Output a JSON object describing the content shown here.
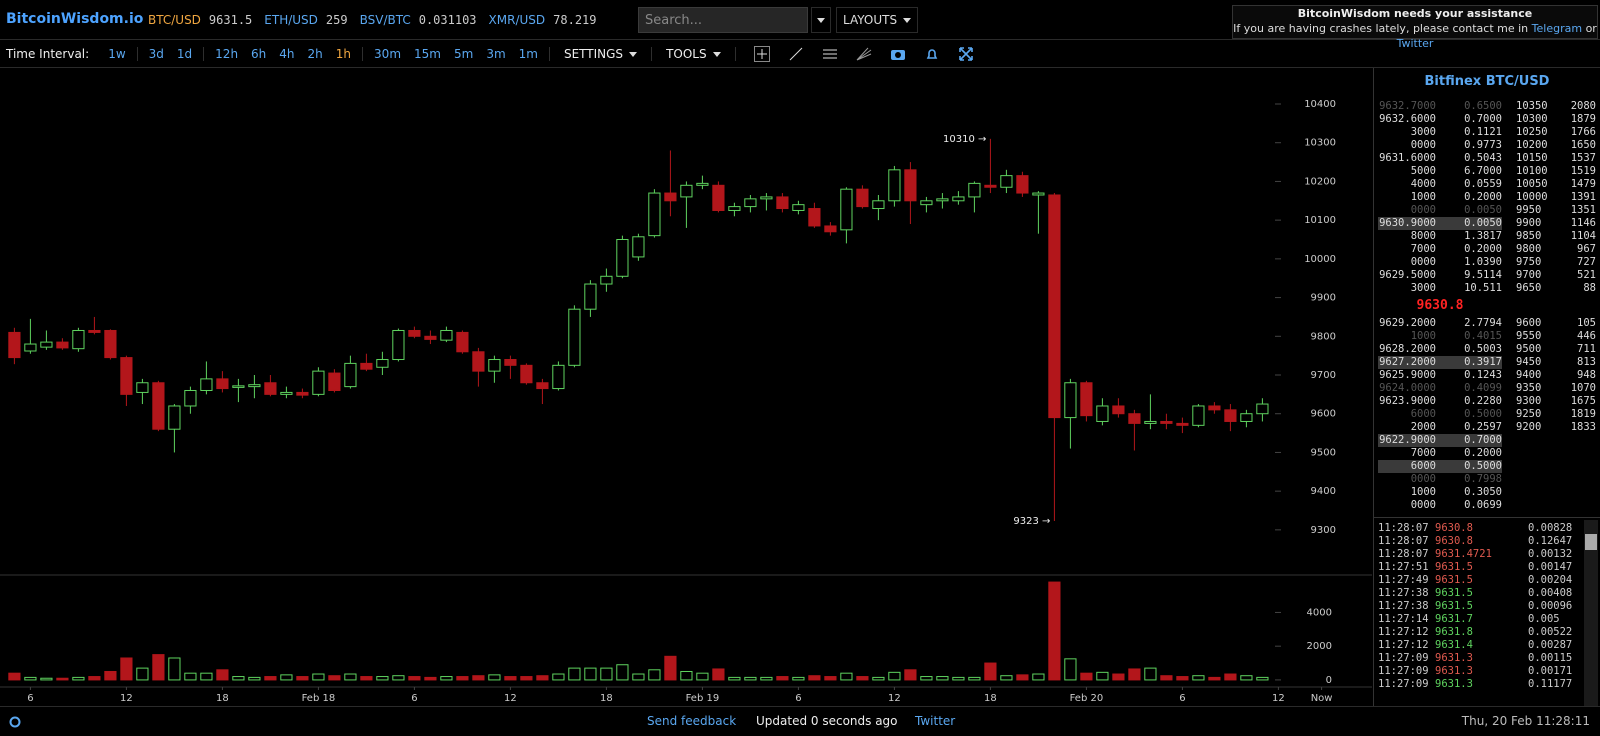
{
  "header": {
    "brand": "BitcoinWisdom.io",
    "tickers": [
      {
        "pair": "BTC/USD",
        "price": "9631.5"
      },
      {
        "pair": "ETH/USD",
        "price": "259"
      },
      {
        "pair": "BSV/BTC",
        "price": "0.031103"
      },
      {
        "pair": "XMR/USD",
        "price": "78.219"
      }
    ],
    "active_pair": "BTC/USD",
    "search_placeholder": "Search...",
    "layouts": "LAYOUTS",
    "notice": {
      "title": "BitcoinWisdom needs your assistance",
      "text": "If you are having crashes lately, please contact me in",
      "link1": "Telegram",
      "joiner": "or",
      "link2": "Twitter"
    }
  },
  "toolbar": {
    "label": "Time Interval:",
    "intervals": [
      [
        "1w"
      ],
      [
        "3d",
        "1d"
      ],
      [
        "12h",
        "6h",
        "4h",
        "2h",
        "1h"
      ],
      [
        "30m",
        "15m",
        "5m",
        "3m",
        "1m"
      ]
    ],
    "active": "1h",
    "settings": "SETTINGS",
    "tools": "TOOLS"
  },
  "chart_data": {
    "type": "candlestick",
    "up_color": "#5fd35f",
    "down_color": "#b3161b",
    "x": [
      0,
      1,
      2,
      3,
      4,
      5,
      6,
      7,
      8,
      9,
      10,
      11,
      12,
      13,
      14,
      15,
      16,
      17,
      18,
      19,
      20,
      21,
      22,
      23,
      24,
      25,
      26,
      27,
      28,
      29,
      30,
      31,
      32,
      33,
      34,
      35,
      36,
      37,
      38,
      39,
      40,
      41,
      42,
      43,
      44,
      45,
      46,
      47,
      48,
      49,
      50,
      51,
      52,
      53,
      54,
      55,
      56,
      57,
      58,
      59,
      60,
      61,
      62,
      63,
      64,
      65,
      66,
      67,
      68,
      69,
      70,
      71,
      72,
      73,
      74,
      75,
      76,
      77,
      78
    ],
    "open": [
      9810,
      9762,
      9772,
      9785,
      9768,
      9815,
      9815,
      9745,
      9655,
      9680,
      9560,
      9620,
      9660,
      9690,
      9668,
      9670,
      9680,
      9650,
      9655,
      9650,
      9705,
      9670,
      9730,
      9720,
      9740,
      9815,
      9800,
      9790,
      9810,
      9760,
      9710,
      9740,
      9725,
      9680,
      9665,
      9725,
      9870,
      9935,
      9955,
      10005,
      10060,
      10170,
      10160,
      10190,
      10190,
      10125,
      10135,
      10155,
      10160,
      10125,
      10130,
      10085,
      10075,
      10180,
      10130,
      10150,
      10230,
      10140,
      10150,
      10150,
      10160,
      10190,
      10185,
      10215,
      10165,
      10165,
      9590,
      9680,
      9580,
      9620,
      9600,
      9575,
      9580,
      9575,
      9570,
      9620,
      9610,
      9580,
      9600
    ],
    "high": [
      9822,
      9845,
      9815,
      9795,
      9822,
      9850,
      9818,
      9750,
      9690,
      9685,
      9625,
      9670,
      9735,
      9710,
      9690,
      9700,
      9700,
      9670,
      9665,
      9720,
      9715,
      9750,
      9755,
      9760,
      9820,
      9825,
      9815,
      9825,
      9815,
      9770,
      9750,
      9750,
      9730,
      9690,
      9735,
      9880,
      9945,
      9975,
      10060,
      10065,
      10180,
      10280,
      10200,
      10215,
      10200,
      10145,
      10165,
      10170,
      10170,
      10150,
      10145,
      10095,
      10185,
      10190,
      10165,
      10240,
      10250,
      10160,
      10170,
      10175,
      10200,
      10310,
      10230,
      10225,
      10175,
      10170,
      9690,
      9685,
      9640,
      9640,
      9610,
      9650,
      9600,
      9590,
      9625,
      9630,
      9625,
      9610,
      9640
    ],
    "low": [
      9728,
      9755,
      9765,
      9765,
      9760,
      9805,
      9740,
      9620,
      9625,
      9555,
      9500,
      9600,
      9650,
      9655,
      9630,
      9640,
      9645,
      9640,
      9640,
      9645,
      9655,
      9665,
      9710,
      9700,
      9735,
      9795,
      9780,
      9785,
      9755,
      9670,
      9680,
      9690,
      9675,
      9625,
      9660,
      9720,
      9850,
      9915,
      9950,
      9995,
      10055,
      10110,
      10080,
      10180,
      10120,
      10110,
      10120,
      10125,
      10120,
      10115,
      10080,
      10060,
      10040,
      10130,
      10100,
      10135,
      10090,
      10120,
      10130,
      10140,
      10120,
      10170,
      10170,
      10160,
      10065,
      9323,
      9510,
      9580,
      9570,
      9590,
      9505,
      9560,
      9560,
      9550,
      9565,
      9600,
      9555,
      9565,
      9580
    ],
    "close": [
      9745,
      9780,
      9785,
      9770,
      9815,
      9810,
      9745,
      9650,
      9680,
      9560,
      9620,
      9660,
      9690,
      9665,
      9672,
      9675,
      9650,
      9655,
      9648,
      9710,
      9660,
      9730,
      9715,
      9740,
      9815,
      9800,
      9792,
      9815,
      9760,
      9710,
      9740,
      9725,
      9680,
      9665,
      9725,
      9870,
      9935,
      9955,
      10050,
      10057,
      10170,
      10150,
      10190,
      10195,
      10125,
      10135,
      10155,
      10160,
      10130,
      10140,
      10085,
      10070,
      10180,
      10135,
      10150,
      10230,
      10150,
      10150,
      10155,
      10160,
      10195,
      10185,
      10215,
      10170,
      10170,
      9590,
      9680,
      9595,
      9620,
      9600,
      9575,
      9580,
      9575,
      9570,
      9620,
      9610,
      9580,
      9600,
      9625
    ],
    "volume": [
      400,
      150,
      100,
      100,
      150,
      200,
      500,
      1300,
      700,
      1500,
      1300,
      400,
      400,
      600,
      200,
      150,
      200,
      300,
      200,
      350,
      250,
      350,
      200,
      200,
      250,
      200,
      150,
      200,
      200,
      250,
      300,
      200,
      200,
      250,
      350,
      700,
      700,
      700,
      900,
      350,
      600,
      1400,
      500,
      400,
      650,
      150,
      150,
      150,
      200,
      150,
      250,
      200,
      400,
      200,
      150,
      450,
      600,
      200,
      200,
      150,
      150,
      1000,
      250,
      300,
      350,
      5800,
      1250,
      400,
      450,
      350,
      650,
      700,
      250,
      200,
      250,
      150,
      350,
      250,
      150
    ],
    "xlim": [
      -0.9,
      84.85
    ],
    "xticks": [
      {
        "value": 1,
        "label": "6"
      },
      {
        "value": 7,
        "label": "12"
      },
      {
        "value": 13,
        "label": "18"
      },
      {
        "value": 19,
        "label": "Feb 18"
      },
      {
        "value": 25,
        "label": "6"
      },
      {
        "value": 31,
        "label": "12"
      },
      {
        "value": 37,
        "label": "18"
      },
      {
        "value": 43,
        "label": "Feb 19"
      },
      {
        "value": 49,
        "label": "6"
      },
      {
        "value": 55,
        "label": "12"
      },
      {
        "value": 61,
        "label": "18"
      },
      {
        "value": 67,
        "label": "Feb 20"
      },
      {
        "value": 73,
        "label": "6"
      },
      {
        "value": 79,
        "label": "12"
      },
      {
        "value": 81.7,
        "label": "Now"
      }
    ],
    "ylim": [
      9186,
      10493
    ],
    "yticks": [
      9300,
      9400,
      9500,
      9600,
      9700,
      9800,
      9900,
      10000,
      10100,
      10200,
      10300,
      10400
    ],
    "volume_ylim": [
      -360,
      6160
    ],
    "volume_yticks": [
      0,
      2000,
      4000
    ],
    "annotations": [
      {
        "value": 10310,
        "label": "10310 →"
      },
      {
        "value": 9323,
        "label": "9323 →"
      }
    ]
  },
  "sidebar": {
    "title": "Bitfinex BTC/USD",
    "asks": [
      {
        "price": "9632.7000",
        "amount": "0.6500",
        "state": "dim"
      },
      {
        "price": "9632.6000",
        "amount": "0.7000"
      },
      {
        "price": "3000",
        "amount": "0.1121"
      },
      {
        "price": "0000",
        "amount": "0.9773"
      },
      {
        "price": "9631.6000",
        "amount": "0.5043"
      },
      {
        "price": "5000",
        "amount": "6.7000"
      },
      {
        "price": "4000",
        "amount": "0.0559"
      },
      {
        "price": "1000",
        "amount": "0.2000"
      },
      {
        "price": "0000",
        "amount": "0.0050",
        "state": "dim"
      },
      {
        "price": "9630.9000",
        "amount": "0.0050",
        "state": "hl"
      },
      {
        "price": "8000",
        "amount": "1.3817"
      },
      {
        "price": "7000",
        "amount": "0.2000"
      },
      {
        "price": "0000",
        "amount": "1.0390"
      },
      {
        "price": "9629.5000",
        "amount": "9.5114"
      },
      {
        "price": "3000",
        "amount": "10.511"
      }
    ],
    "last_price": "9630.8",
    "bids": [
      {
        "price": "9629.2000",
        "amount": "2.7794"
      },
      {
        "price": "1000",
        "amount": "0.4015",
        "state": "dim"
      },
      {
        "price": "9628.2000",
        "amount": "0.5003"
      },
      {
        "price": "9627.2000",
        "amount": "0.3917",
        "state": "hl"
      },
      {
        "price": "9625.9000",
        "amount": "0.1243"
      },
      {
        "price": "9624.0000",
        "amount": "0.4099",
        "state": "dim"
      },
      {
        "price": "9623.9000",
        "amount": "0.2280"
      },
      {
        "price": "6000",
        "amount": "0.5000",
        "state": "dim"
      },
      {
        "price": "2000",
        "amount": "0.2597"
      },
      {
        "price": "9622.9000",
        "amount": "0.7000",
        "state": "hl"
      },
      {
        "price": "7000",
        "amount": "0.2000"
      },
      {
        "price": "6000",
        "amount": "0.5000",
        "state": "hl"
      },
      {
        "price": "0000",
        "amount": "0.7998",
        "state": "dim"
      },
      {
        "price": "1000",
        "amount": "0.3050"
      },
      {
        "price": "0000",
        "amount": "0.0699"
      }
    ],
    "ask_depth": [
      [
        "10350",
        "2080"
      ],
      [
        "10300",
        "1879"
      ],
      [
        "10250",
        "1766"
      ],
      [
        "10200",
        "1650"
      ],
      [
        "10150",
        "1537"
      ],
      [
        "10100",
        "1519"
      ],
      [
        "10050",
        "1479"
      ],
      [
        "10000",
        "1391"
      ],
      [
        "9950",
        "1351"
      ],
      [
        "9900",
        "1146"
      ],
      [
        "9850",
        "1104"
      ],
      [
        "9800",
        "967"
      ],
      [
        "9750",
        "727"
      ],
      [
        "9700",
        "521"
      ],
      [
        "9650",
        "88"
      ]
    ],
    "bid_depth": [
      [
        "9600",
        "105"
      ],
      [
        "9550",
        "446"
      ],
      [
        "9500",
        "711"
      ],
      [
        "9450",
        "813"
      ],
      [
        "9400",
        "948"
      ],
      [
        "9350",
        "1070"
      ],
      [
        "9300",
        "1675"
      ],
      [
        "9250",
        "1819"
      ],
      [
        "9200",
        "1833"
      ]
    ],
    "trades": [
      {
        "time": "11:28:07",
        "price": "9630.8",
        "amount": "0.00828",
        "color": "#e05a4f"
      },
      {
        "time": "11:28:07",
        "price": "9630.8",
        "amount": "0.12647",
        "color": "#e05a4f"
      },
      {
        "time": "11:28:07",
        "price": "9631.4721",
        "amount": "0.00132",
        "color": "#e05a4f"
      },
      {
        "time": "11:27:51",
        "price": "9631.5",
        "amount": "0.00147",
        "color": "#e05a4f"
      },
      {
        "time": "11:27:49",
        "price": "9631.5",
        "amount": "0.00204",
        "color": "#e05a4f"
      },
      {
        "time": "11:27:38",
        "price": "9631.5",
        "amount": "0.00408",
        "color": "#5fd35f"
      },
      {
        "time": "11:27:38",
        "price": "9631.5",
        "amount": "0.00096",
        "color": "#5fd35f"
      },
      {
        "time": "11:27:14",
        "price": "9631.7",
        "amount": "0.005",
        "color": "#5fd35f"
      },
      {
        "time": "11:27:12",
        "price": "9631.8",
        "amount": "0.00522",
        "color": "#5fd35f"
      },
      {
        "time": "11:27:12",
        "price": "9631.4",
        "amount": "0.00287",
        "color": "#5fd35f"
      },
      {
        "time": "11:27:09",
        "price": "9631.3",
        "amount": "0.00115",
        "color": "#e05a4f"
      },
      {
        "time": "11:27:09",
        "price": "9631.3",
        "amount": "0.00171",
        "color": "#e05a4f"
      },
      {
        "time": "11:27:09",
        "price": "9631.3",
        "amount": "0.11177",
        "color": "#5fd35f"
      }
    ]
  },
  "footer": {
    "feedback": "Send feedback",
    "status": "Updated 0 seconds ago",
    "twitter": "Twitter",
    "datetime": "Thu, 20 Feb 11:28:11"
  }
}
